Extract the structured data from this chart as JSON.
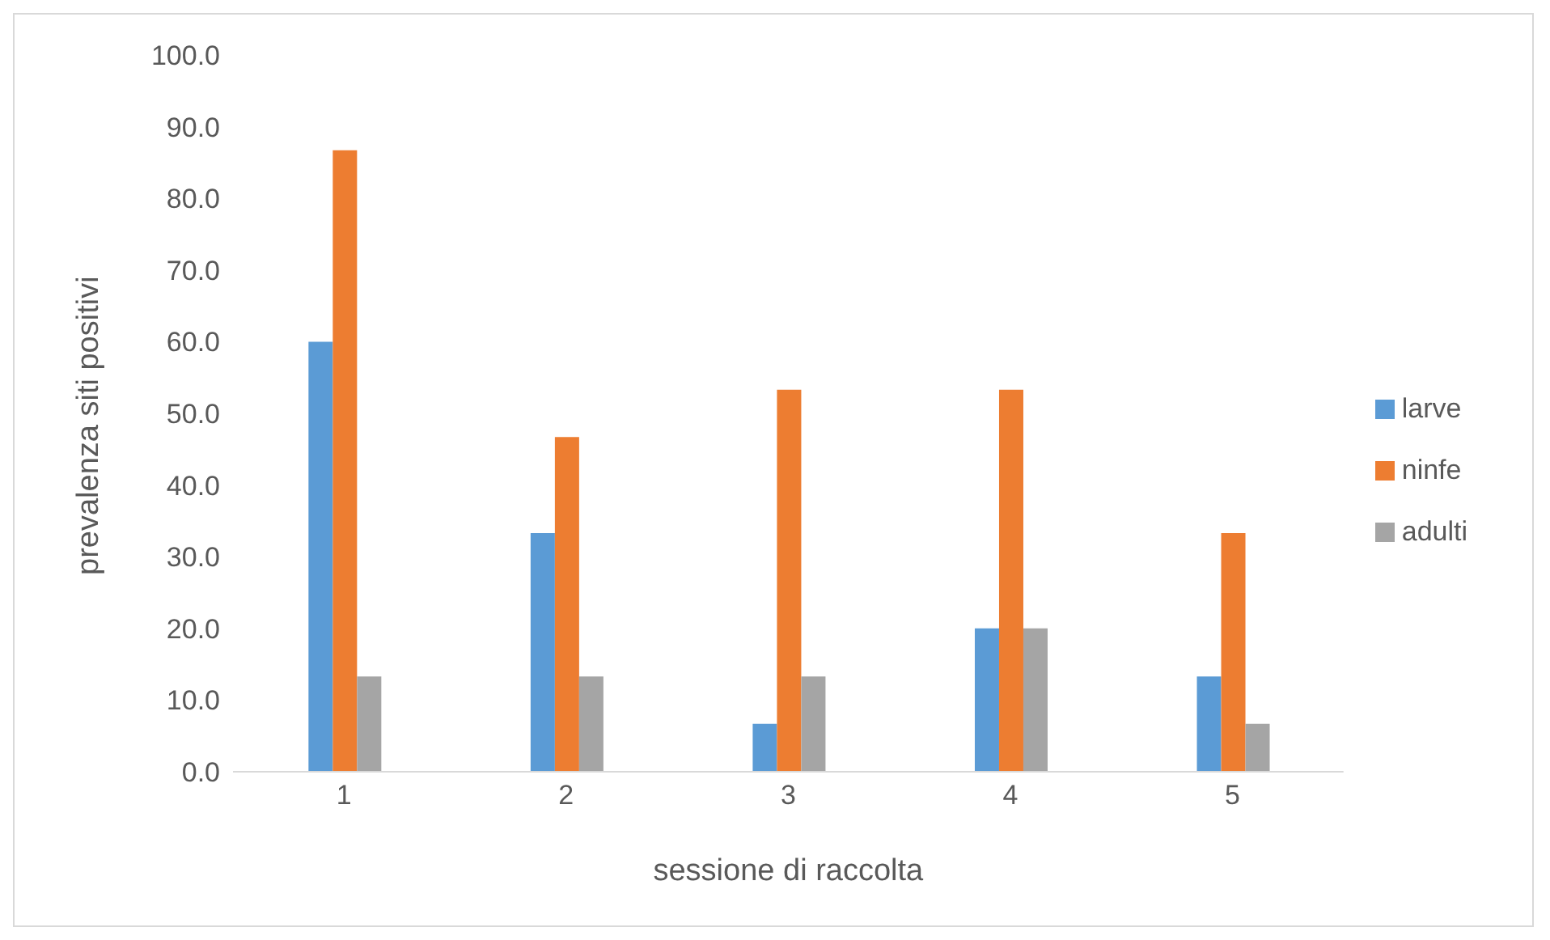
{
  "chart_data": {
    "type": "bar",
    "xlabel": "sessione di raccolta",
    "ylabel": "prevalenza siti positivi",
    "categories": [
      "1",
      "2",
      "3",
      "4",
      "5"
    ],
    "series": [
      {
        "name": "larve",
        "color": "#5b9bd5",
        "values": [
          60.0,
          33.3,
          6.7,
          20.0,
          13.3
        ]
      },
      {
        "name": "ninfe",
        "color": "#ed7d31",
        "values": [
          86.7,
          46.7,
          53.3,
          53.3,
          33.3
        ]
      },
      {
        "name": "adulti",
        "color": "#a5a5a5",
        "values": [
          13.3,
          13.3,
          13.3,
          20.0,
          6.7
        ]
      }
    ],
    "ylim": [
      0,
      100
    ],
    "yticks": [
      {
        "value": 0,
        "label": "0.0"
      },
      {
        "value": 10,
        "label": "10.0"
      },
      {
        "value": 20,
        "label": "20.0"
      },
      {
        "value": 30,
        "label": "30.0"
      },
      {
        "value": 40,
        "label": "40.0"
      },
      {
        "value": 50,
        "label": "50.0"
      },
      {
        "value": 60,
        "label": "60.0"
      },
      {
        "value": 70,
        "label": "70.0"
      },
      {
        "value": 80,
        "label": "80.0"
      },
      {
        "value": 90,
        "label": "90.0"
      },
      {
        "value": 100,
        "label": "100.0"
      }
    ],
    "grid": false,
    "legend": "right"
  }
}
